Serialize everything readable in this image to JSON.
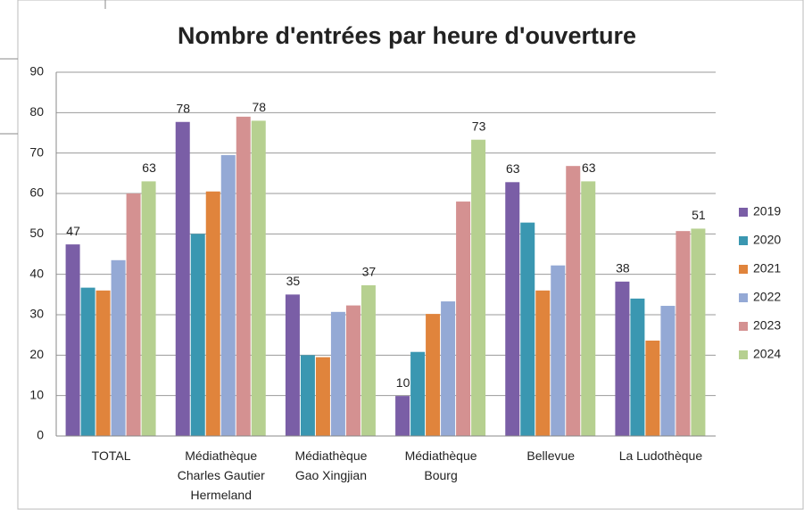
{
  "chart_data": {
    "type": "bar",
    "title": "Nombre d'entrées par heure d'ouverture",
    "categories": [
      "TOTAL",
      "Médiathèque\nCharles Gautier\nHermeland",
      "Médiathèque\nGao Xingjian",
      "Médiathèque\nBourg",
      "Bellevue",
      "La Ludothèque"
    ],
    "series": [
      {
        "name": "2019",
        "color": "#7a5ea6",
        "values": [
          47.4,
          77.7,
          35,
          9.9,
          62.8,
          38.2
        ],
        "value_labels": [
          "47",
          "78",
          "35",
          "10",
          "63",
          "38"
        ]
      },
      {
        "name": "2020",
        "color": "#3a97b1",
        "values": [
          36.7,
          50,
          20,
          20.8,
          52.8,
          34
        ]
      },
      {
        "name": "2021",
        "color": "#e0843c",
        "values": [
          36,
          60.5,
          19.5,
          30.2,
          36,
          23.6
        ]
      },
      {
        "name": "2022",
        "color": "#94a9d5",
        "values": [
          43.5,
          69.5,
          30.7,
          33.3,
          42.2,
          32.2
        ]
      },
      {
        "name": "2023",
        "color": "#d49191",
        "values": [
          60,
          79,
          32.3,
          58,
          66.8,
          50.7
        ]
      },
      {
        "name": "2024",
        "color": "#b6d090",
        "values": [
          63,
          78,
          37.3,
          73.3,
          63,
          51.3
        ],
        "value_labels": [
          "63",
          "78",
          "37",
          "73",
          "63",
          "51"
        ]
      }
    ],
    "ylim": [
      0,
      90
    ],
    "yticks": [
      0,
      10,
      20,
      30,
      40,
      50,
      60,
      70,
      80,
      90
    ],
    "grid": true,
    "legend": "right"
  }
}
